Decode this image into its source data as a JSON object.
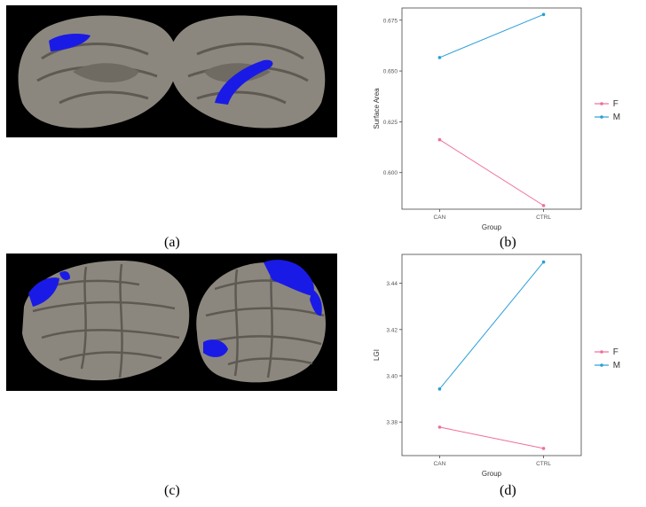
{
  "figure": {
    "labels": {
      "a": "(a)",
      "b": "(b)",
      "c": "(c)",
      "d": "(d)"
    }
  },
  "colors": {
    "F": "#f06e96",
    "M": "#2a9fd6",
    "highlight": "#1a1ae6",
    "cortex": "#8c877e",
    "background": "#000000"
  },
  "chart_data": [
    {
      "type": "line",
      "xlabel": "Group",
      "ylabel": "Surface Area",
      "categories": [
        "CAN",
        "CTRL"
      ],
      "ylim": [
        0.582,
        0.681
      ],
      "yticks": [
        0.6,
        0.625,
        0.65,
        0.675
      ],
      "ytick_labels": [
        "0.600",
        "0.625",
        "0.650",
        "0.675"
      ],
      "series": [
        {
          "name": "F",
          "values": [
            0.6162,
            0.5838
          ]
        },
        {
          "name": "M",
          "values": [
            0.6566,
            0.6778
          ]
        }
      ],
      "legend": "right",
      "grid": false
    },
    {
      "type": "line",
      "xlabel": "Group",
      "ylabel": "LGI",
      "categories": [
        "CAN",
        "CTRL"
      ],
      "ylim": [
        3.3655,
        3.4525
      ],
      "yticks": [
        3.38,
        3.4,
        3.42,
        3.44
      ],
      "ytick_labels": [
        "3.38",
        "3.40",
        "3.42",
        "3.44"
      ],
      "series": [
        {
          "name": "F",
          "values": [
            3.3778,
            3.3686
          ]
        },
        {
          "name": "M",
          "values": [
            3.3943,
            3.4492
          ]
        }
      ],
      "legend": "right",
      "grid": false
    }
  ]
}
